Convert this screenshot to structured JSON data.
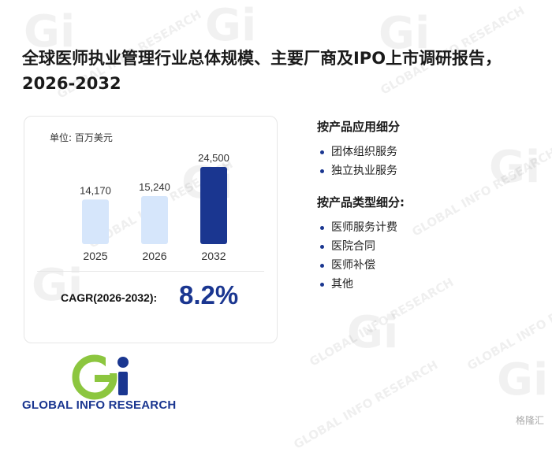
{
  "title": "全球医师执业管理行业总体规模、主要厂商及IPO上市调研报告，2026-2032",
  "unit_label": "单位: 百万美元",
  "chart_data": {
    "type": "bar",
    "title": "",
    "xlabel": "",
    "ylabel": "",
    "categories": [
      "2025",
      "2026",
      "2032"
    ],
    "values": [
      14170,
      15240,
      24500
    ],
    "value_labels": [
      "14,170",
      "15,240",
      "24,500"
    ],
    "unit": "百万美元",
    "ylim": [
      0,
      25000
    ],
    "grid": false,
    "legend": "none",
    "colors": [
      "#d6e6fb",
      "#d6e6fb",
      "#1a3690"
    ]
  },
  "cagr": {
    "label": "CAGR(2026-2032):",
    "value": "8.2%"
  },
  "segments": {
    "by_application": {
      "heading": "按产品应用细分",
      "items": [
        "团体组织服务",
        "独立执业服务"
      ]
    },
    "by_type": {
      "heading": "按产品类型细分:",
      "items": [
        "医师服务计费",
        "医院合同",
        "医师补偿",
        "其他"
      ]
    }
  },
  "logo": {
    "mark": "Gi",
    "text": "GLOBAL INFO RESEARCH",
    "colors": {
      "blue": "#1a3690",
      "green": "#8cc63f"
    }
  },
  "watermark_text": "GLOBAL INFO RESEARCH",
  "corner_badge": "格隆汇"
}
